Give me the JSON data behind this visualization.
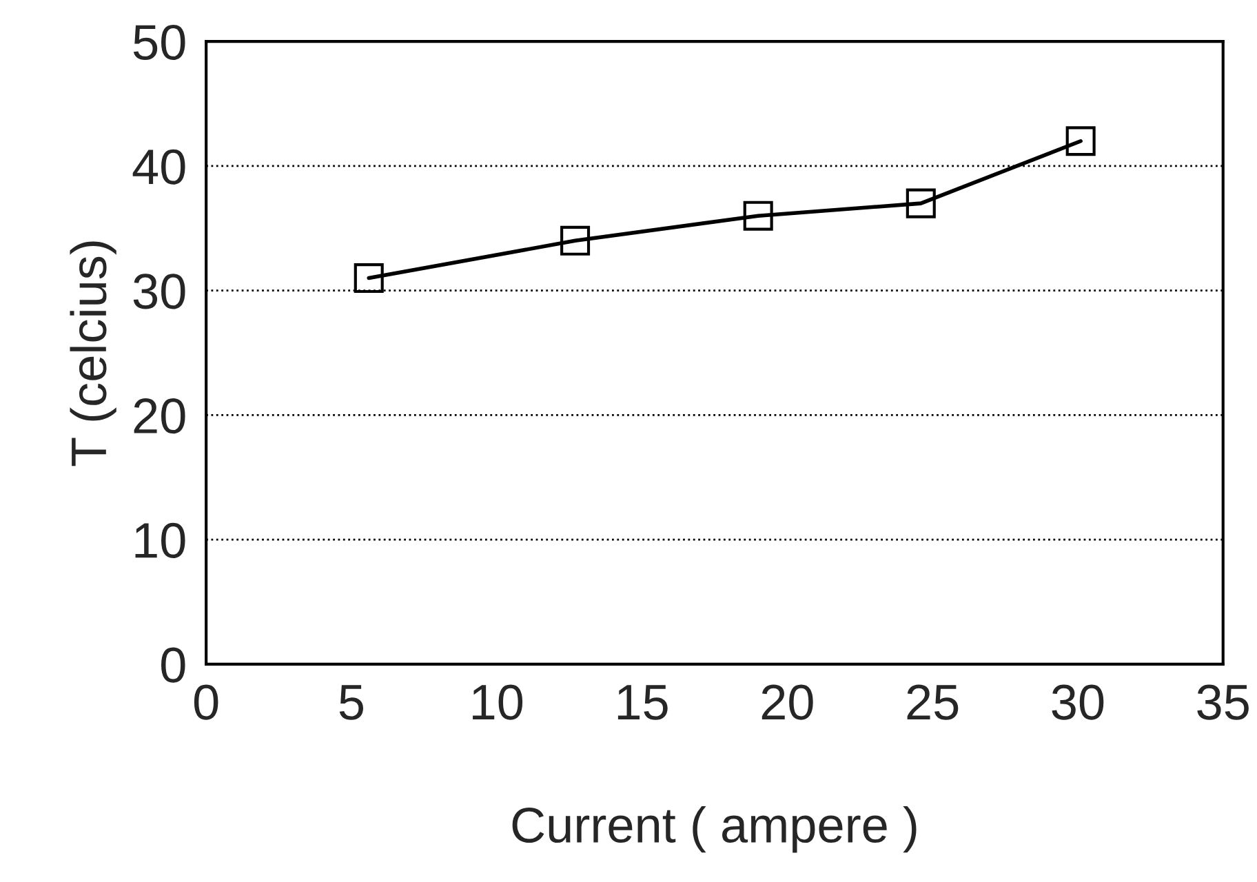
{
  "chart_data": {
    "type": "line",
    "xlabel": "Current ( ampere )",
    "ylabel": "T (celcius)",
    "x": [
      5.6,
      12.7,
      19.0,
      24.6,
      30.1
    ],
    "series": [
      {
        "color": "#000000",
        "values": [
          31,
          34,
          36,
          37,
          42
        ]
      }
    ],
    "xlim": [
      0,
      35
    ],
    "xticks": [
      0,
      5,
      10,
      15,
      20,
      25,
      30,
      35
    ],
    "ylim": [
      0,
      50
    ],
    "yticks": [
      0,
      10,
      20,
      30,
      40,
      50
    ],
    "grid": "y",
    "marker": "square",
    "line_style": "solid"
  }
}
